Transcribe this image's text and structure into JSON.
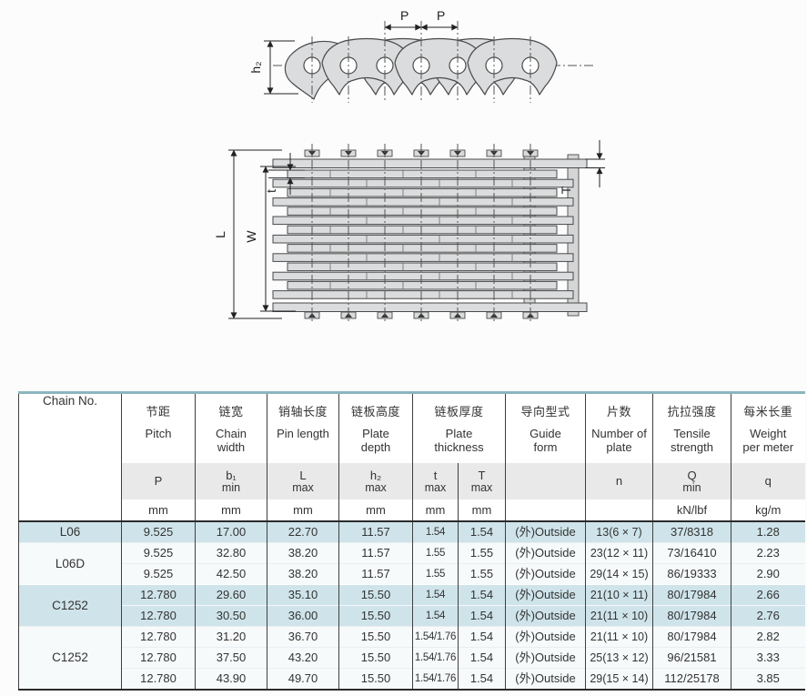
{
  "colors": {
    "table_top_border": "#8bb5be",
    "row_shade": "#cfe4ea",
    "row_plain": "#f7fafb",
    "subheader_bg": "#e9e9e9",
    "plate_fill": "#dbdcdd",
    "line_dark": "#4a4a4a"
  },
  "diagrams": {
    "side_view": {
      "pitch_label_1": "P",
      "pitch_label_2": "P",
      "plate_depth_label": "h₂"
    },
    "plan_view": {
      "pin_length_label": "L",
      "chain_width_label": "W",
      "plate_thickness_inner_label": "t",
      "plate_thickness_outer_label": "T"
    }
  },
  "table": {
    "chain_no_label": "Chain No.",
    "columns": [
      {
        "cn": "节距",
        "en": "Pitch",
        "symbol": "P",
        "qualifier": "",
        "unit": "mm"
      },
      {
        "cn": "链宽",
        "en": "Chain width",
        "symbol": "b₁",
        "qualifier": "min",
        "unit": "mm"
      },
      {
        "cn": "销轴长度",
        "en": "Pin length",
        "symbol": "L",
        "qualifier": "max",
        "unit": "mm"
      },
      {
        "cn": "链板高度",
        "en": "Plate depth",
        "symbol": "h₂",
        "qualifier": "max",
        "unit": "mm"
      },
      {
        "cn": "链板厚度",
        "en": "Plate thickness",
        "sub": [
          {
            "symbol": "t",
            "qualifier": "max",
            "unit": "mm"
          },
          {
            "symbol": "T",
            "qualifier": "max",
            "unit": "mm"
          }
        ]
      },
      {
        "cn": "导向型式",
        "en": "Guide form",
        "symbol": "",
        "qualifier": "",
        "unit": ""
      },
      {
        "cn": "片数",
        "en": "Number of plate",
        "symbol": "n",
        "qualifier": "",
        "unit": ""
      },
      {
        "cn": "抗拉强度",
        "en": "Tensile strength",
        "symbol": "Q",
        "qualifier": "min",
        "unit": "kN/lbf"
      },
      {
        "cn": "每米长重",
        "en": "Weight per meter",
        "symbol": "q",
        "qualifier": "",
        "unit": "kg/m"
      }
    ],
    "groups": [
      {
        "chain_no": "L06",
        "shaded": true,
        "rows": [
          [
            "9.525",
            "17.00",
            "22.70",
            "11.57",
            "1.54",
            "1.54",
            "(外)Outside",
            "13(6 × 7)",
            "37/8318",
            "1.28"
          ]
        ]
      },
      {
        "chain_no": "L06D",
        "shaded": false,
        "rows": [
          [
            "9.525",
            "32.80",
            "38.20",
            "11.57",
            "1.55",
            "1.55",
            "(外)Outside",
            "23(12 × 11)",
            "73/16410",
            "2.23"
          ],
          [
            "9.525",
            "42.50",
            "38.20",
            "11.57",
            "1.55",
            "1.55",
            "(外)Outside",
            "29(14 × 15)",
            "86/19333",
            "2.90"
          ]
        ]
      },
      {
        "chain_no": "C1252",
        "shaded": true,
        "rows": [
          [
            "12.780",
            "29.60",
            "35.10",
            "15.50",
            "1.54",
            "1.54",
            "(外)Outside",
            "21(10 × 11)",
            "80/17984",
            "2.66"
          ],
          [
            "12.780",
            "30.50",
            "36.00",
            "15.50",
            "1.54",
            "1.54",
            "(外)Outside",
            "21(11 × 10)",
            "80/17984",
            "2.76"
          ]
        ]
      },
      {
        "chain_no": "C1252",
        "shaded": false,
        "rows": [
          [
            "12.780",
            "31.20",
            "36.70",
            "15.50",
            "1.54/1.76",
            "1.54",
            "(外)Outside",
            "21(11 × 10)",
            "80/17984",
            "2.82"
          ],
          [
            "12.780",
            "37.50",
            "43.20",
            "15.50",
            "1.54/1.76",
            "1.54",
            "(外)Outside",
            "25(13 × 12)",
            "96/21581",
            "3.33"
          ],
          [
            "12.780",
            "43.90",
            "49.70",
            "15.50",
            "1.54/1.76",
            "1.54",
            "(外)Outside",
            "29(15 × 14)",
            "112/25178",
            "3.85"
          ]
        ]
      }
    ]
  }
}
